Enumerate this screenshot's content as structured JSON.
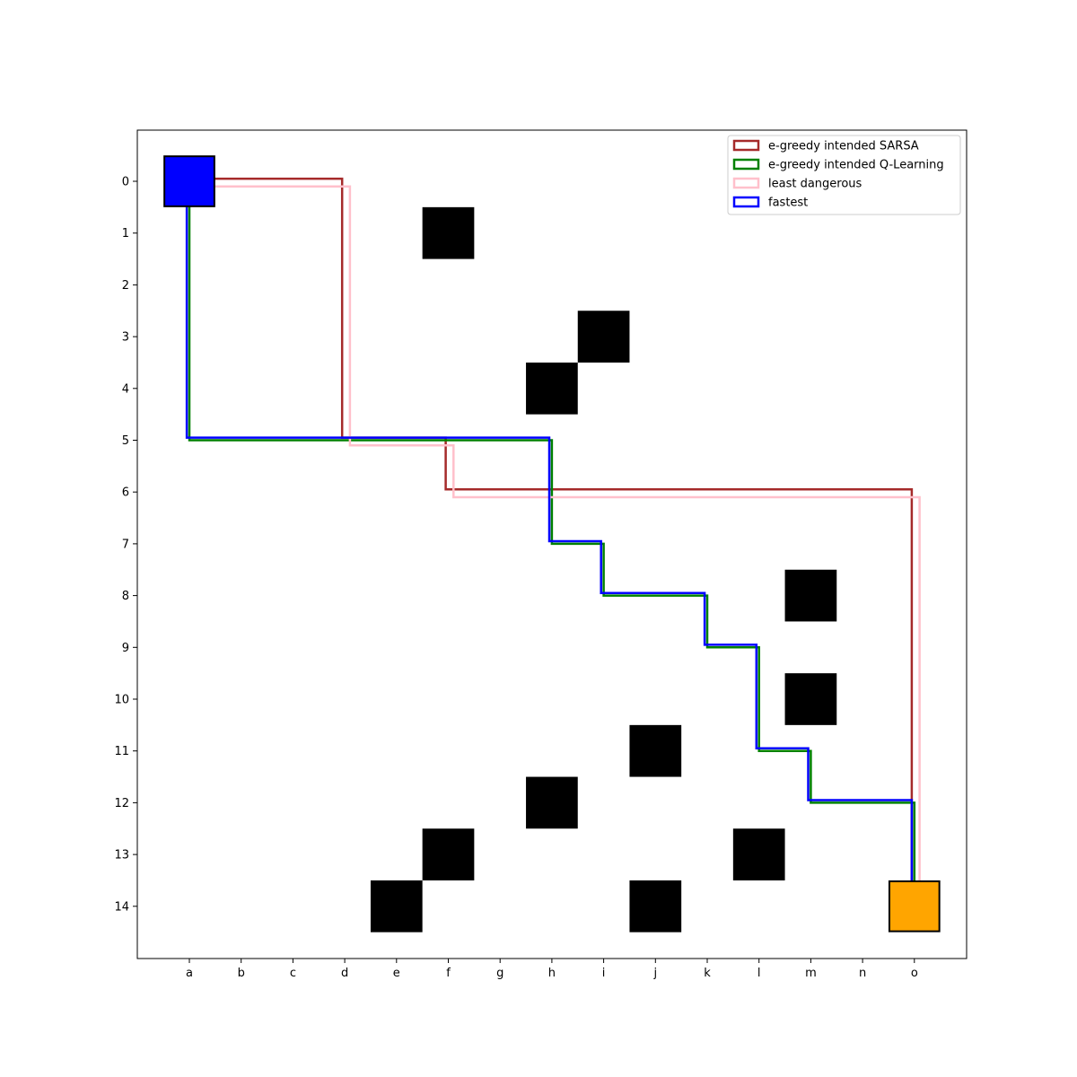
{
  "chart_data": {
    "type": "grid-path",
    "title": "",
    "xlabel": "",
    "ylabel": "",
    "grid": false,
    "grid_size": [
      15,
      15
    ],
    "x_tick_labels": [
      "a",
      "b",
      "c",
      "d",
      "e",
      "f",
      "g",
      "h",
      "i",
      "j",
      "k",
      "l",
      "m",
      "n",
      "o"
    ],
    "y_tick_labels": [
      "0",
      "1",
      "2",
      "3",
      "4",
      "5",
      "6",
      "7",
      "8",
      "9",
      "10",
      "11",
      "12",
      "13",
      "14"
    ],
    "start": {
      "col": "a",
      "row": 0,
      "color": "#0000ff"
    },
    "goal": {
      "col": "o",
      "row": 14,
      "color": "#ffa500"
    },
    "obstacles": [
      {
        "col": "f",
        "row": 1
      },
      {
        "col": "i",
        "row": 3
      },
      {
        "col": "h",
        "row": 4
      },
      {
        "col": "m",
        "row": 8
      },
      {
        "col": "m",
        "row": 10
      },
      {
        "col": "j",
        "row": 11
      },
      {
        "col": "h",
        "row": 12
      },
      {
        "col": "f",
        "row": 13
      },
      {
        "col": "l",
        "row": 13
      },
      {
        "col": "e",
        "row": 14
      },
      {
        "col": "j",
        "row": 14
      }
    ],
    "legend_position": "top-right",
    "series": [
      {
        "name": "e-greedy intended SARSA",
        "color": "#a52a2a",
        "offset": -0.1,
        "path": [
          [
            0,
            0
          ],
          [
            3,
            0
          ],
          [
            3,
            5
          ],
          [
            5,
            5
          ],
          [
            5,
            6
          ],
          [
            14,
            6
          ],
          [
            14,
            14
          ]
        ]
      },
      {
        "name": "e-greedy intended Q-Learning",
        "color": "#008000",
        "offset": 0.0,
        "path": [
          [
            0,
            0
          ],
          [
            0,
            5
          ],
          [
            7,
            5
          ],
          [
            7,
            7
          ],
          [
            8,
            7
          ],
          [
            8,
            8
          ],
          [
            10,
            8
          ],
          [
            10,
            9
          ],
          [
            11,
            9
          ],
          [
            11,
            11
          ],
          [
            12,
            11
          ],
          [
            12,
            12
          ],
          [
            14,
            12
          ],
          [
            14,
            14
          ]
        ]
      },
      {
        "name": "least dangerous",
        "color": "#ffc0cb",
        "offset": 0.2,
        "path": [
          [
            0,
            0
          ],
          [
            3,
            0
          ],
          [
            3,
            5
          ],
          [
            5,
            5
          ],
          [
            5,
            6
          ],
          [
            14,
            6
          ],
          [
            14,
            14
          ]
        ]
      },
      {
        "name": "fastest",
        "color": "#0000ff",
        "offset": -0.1,
        "path": [
          [
            0,
            0
          ],
          [
            0,
            5
          ],
          [
            7,
            5
          ],
          [
            7,
            7
          ],
          [
            8,
            7
          ],
          [
            8,
            8
          ],
          [
            10,
            8
          ],
          [
            10,
            9
          ],
          [
            11,
            9
          ],
          [
            11,
            11
          ],
          [
            12,
            11
          ],
          [
            12,
            12
          ],
          [
            14,
            12
          ],
          [
            14,
            14
          ]
        ]
      }
    ]
  }
}
